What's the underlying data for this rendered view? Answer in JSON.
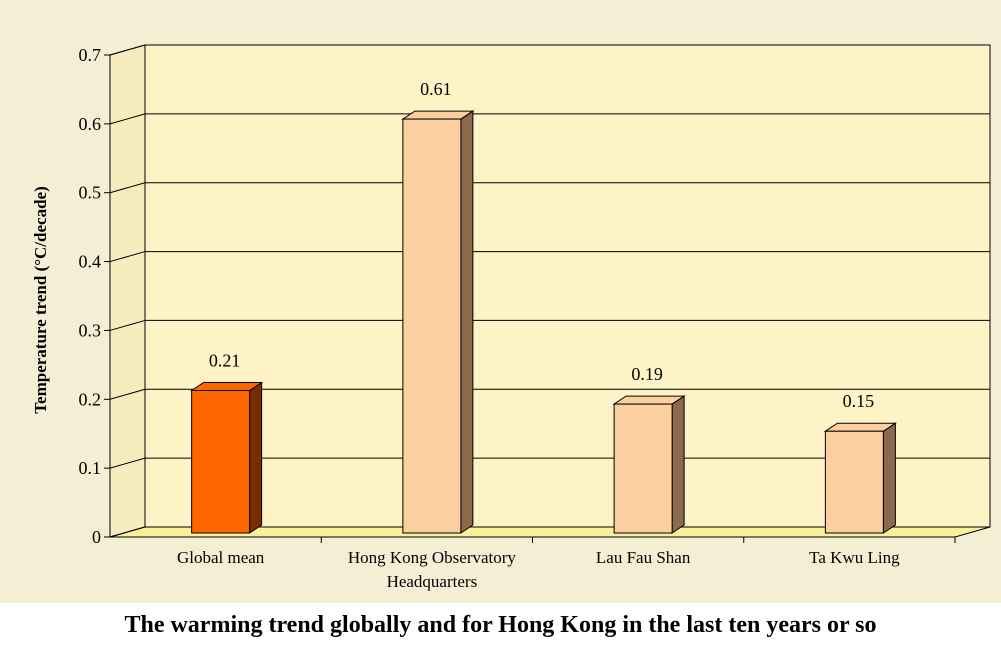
{
  "caption": "The warming trend globally and for Hong Kong in the last ten years or so",
  "chart_data": {
    "type": "bar",
    "title": "",
    "xlabel": "",
    "ylabel": "Temperature trend (°C/decade)",
    "ylim": [
      0,
      0.7
    ],
    "yticks": [
      "0",
      "0.1",
      "0.2",
      "0.3",
      "0.4",
      "0.5",
      "0.6",
      "0.7"
    ],
    "grid": true,
    "categories": [
      [
        "Global mean"
      ],
      [
        "Hong Kong Observatory",
        "Headquarters"
      ],
      [
        "Lau Fau Shan"
      ],
      [
        "Ta Kwu Ling"
      ]
    ],
    "values": [
      0.21,
      0.61,
      0.19,
      0.15
    ],
    "value_labels": [
      "0.21",
      "0.61",
      "0.19",
      "0.15"
    ],
    "colors": {
      "highlight_bar": "#ff6600",
      "highlight_side": "#7a2e00",
      "bar": "#fbcf9f",
      "bar_side": "#8b6a4e",
      "plot_background": "#fdf3c6",
      "floor": "#f9f19a",
      "panel": "#f4eed5"
    }
  }
}
